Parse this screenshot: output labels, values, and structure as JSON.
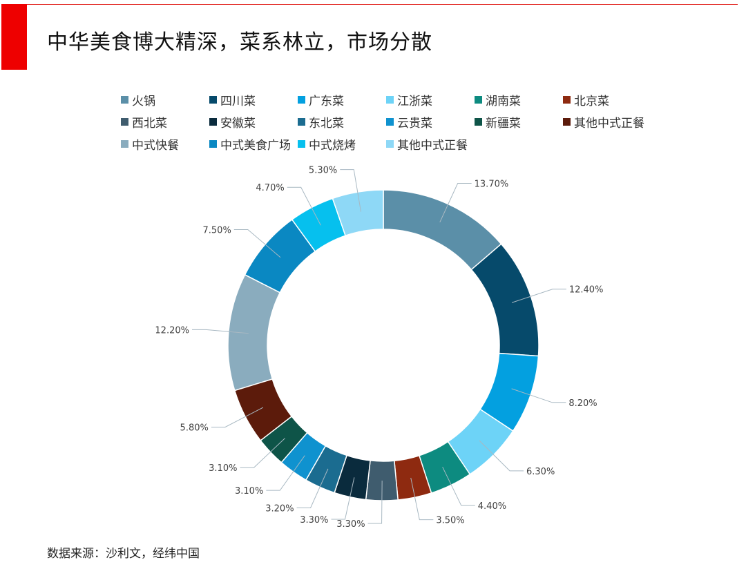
{
  "header": {
    "title": "中华美食博大精深，菜系林立，市场分散"
  },
  "footer": {
    "source": "数据来源：沙利文，经纬中国"
  },
  "theme": {
    "accent": "#ee0000"
  },
  "chart_data": {
    "type": "pie",
    "subtype": "donut",
    "legend_position": "top",
    "categories": [
      "火锅",
      "四川菜",
      "广东菜",
      "江浙菜",
      "湖南菜",
      "北京菜",
      "西北菜",
      "安徽菜",
      "东北菜",
      "云贵菜",
      "新疆菜",
      "其他中式正餐",
      "中式快餐",
      "中式美食广场",
      "中式烧烤",
      "其他中式正餐"
    ],
    "values": [
      13.7,
      12.4,
      8.2,
      6.3,
      4.4,
      3.5,
      3.3,
      3.3,
      3.2,
      3.1,
      3.1,
      5.8,
      12.2,
      7.5,
      4.7,
      5.3
    ],
    "data_labels": [
      "13.70%",
      "12.40%",
      "8.20%",
      "6.30%",
      "4.40%",
      "3.50%",
      "3.30%",
      "3.30%",
      "3.20%",
      "3.10%",
      "3.10%",
      "5.80%",
      "12.20%",
      "7.50%",
      "4.70%",
      "5.30%"
    ],
    "colors": [
      "#5b8fa8",
      "#064a6b",
      "#03a0e0",
      "#6dd3f7",
      "#0d8b80",
      "#8e2a10",
      "#3f5c6e",
      "#0a2b3d",
      "#1b6c90",
      "#0f92cf",
      "#0e5448",
      "#5c1b0b",
      "#8aacbe",
      "#0a88c2",
      "#06c0ee",
      "#8ed8f6"
    ]
  }
}
